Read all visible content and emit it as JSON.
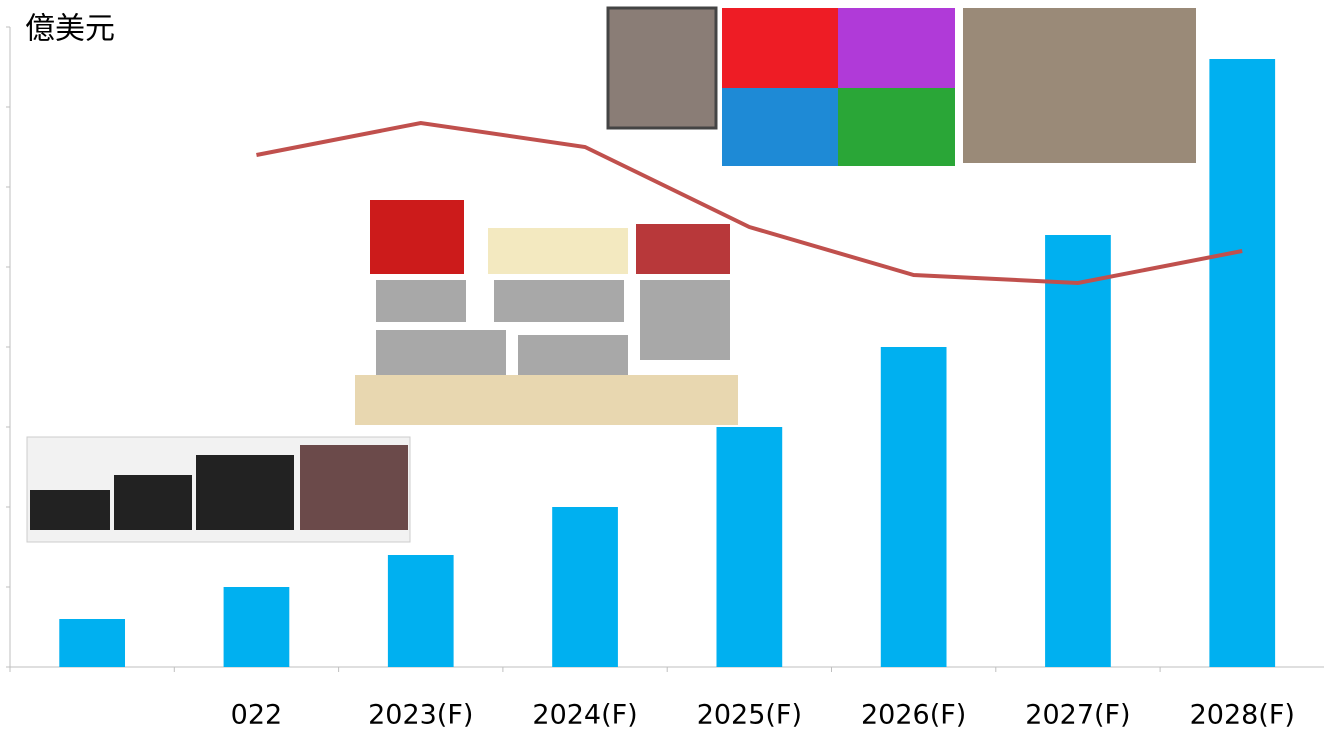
{
  "chart_data": {
    "type": "bar-line",
    "title": "億美元",
    "categories": [
      null,
      "022",
      "2023(F)",
      "2024(F)",
      "2025(F)",
      "2026(F)",
      "2027(F)",
      "2028(F)"
    ],
    "series": [
      {
        "type": "bar",
        "color": "#00b0f0",
        "values": [
          0.6,
          1.0,
          1.4,
          2.0,
          3.0,
          4.0,
          5.4,
          7.6
        ]
      },
      {
        "type": "line",
        "color": "#c0504d",
        "values": [
          null,
          6.4,
          6.8,
          6.5,
          5.5,
          4.9,
          4.8,
          5.2
        ]
      }
    ],
    "ylim": [
      0,
      8
    ],
    "yticks": [
      0,
      1,
      2,
      3,
      4,
      5,
      6,
      7,
      8
    ]
  }
}
